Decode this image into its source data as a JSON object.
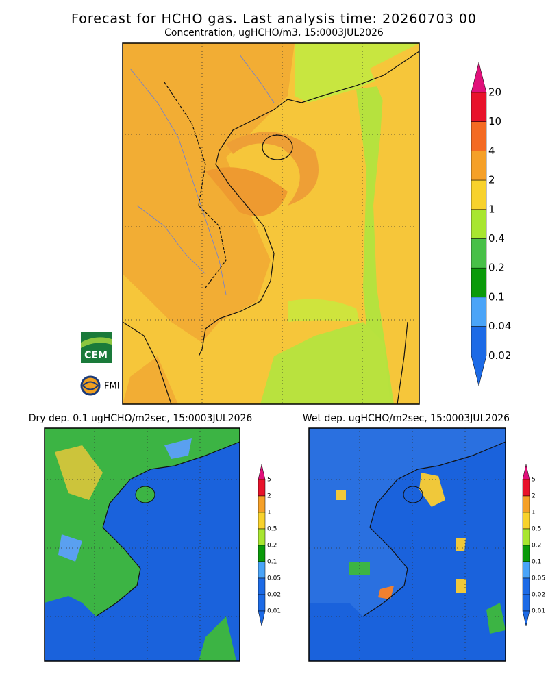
{
  "header": {
    "title": "Forecast for HCHO gas. Last analysis time: 20260703 00",
    "subtitle": "Concentration, ugHCHO/m3, 15:0003JUL2026"
  },
  "main_colorbar": {
    "labels": [
      "20",
      "10",
      "4",
      "2",
      "1",
      "0.4",
      "0.2",
      "0.1",
      "0.04",
      "0.02"
    ]
  },
  "dry_panel": {
    "title": "Dry dep. 0.1 ugHCHO/m2sec, 15:0003JUL2026",
    "colorbar_labels": [
      "5",
      "2",
      "1",
      "0.5",
      "0.2",
      "0.1",
      "0.05",
      "0.02",
      "0.01"
    ]
  },
  "wet_panel": {
    "title": "Wet dep. ugHCHO/m2sec, 15:0003JUL2026",
    "colorbar_labels": [
      "5",
      "2",
      "1",
      "0.5",
      "0.2",
      "0.1",
      "0.05",
      "0.02",
      "0.01"
    ]
  },
  "logos": {
    "cem": "CEM",
    "fmi": "FMI"
  }
}
